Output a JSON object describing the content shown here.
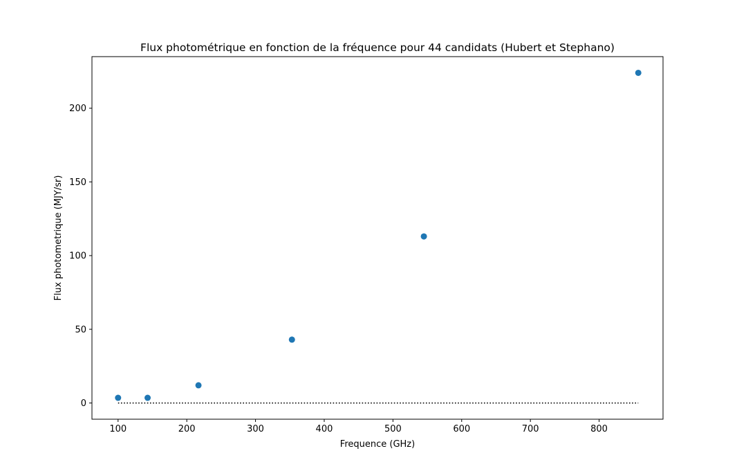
{
  "chart_data": {
    "type": "scatter",
    "title": "Flux photométrique en fonction de la fréquence pour 44 candidats (Hubert et Stephano)",
    "xlabel": "Frequence (GHz)",
    "ylabel": "Flux photometrique (MJY/sr)",
    "xlim": [
      62,
      893
    ],
    "ylim": [
      -11,
      235
    ],
    "xticks": [
      100,
      200,
      300,
      400,
      500,
      600,
      700,
      800
    ],
    "yticks": [
      0,
      50,
      100,
      150,
      200
    ],
    "grid": false,
    "series": [
      {
        "type": "scatter",
        "color": "#1f77b4",
        "x": [
          100,
          143,
          217,
          353,
          545,
          857
        ],
        "y": [
          3.5,
          3.5,
          12,
          43,
          113,
          224
        ]
      },
      {
        "type": "line",
        "style": "dotted",
        "color": "#000000",
        "x": [
          100,
          857
        ],
        "y": [
          0,
          0
        ]
      }
    ]
  }
}
